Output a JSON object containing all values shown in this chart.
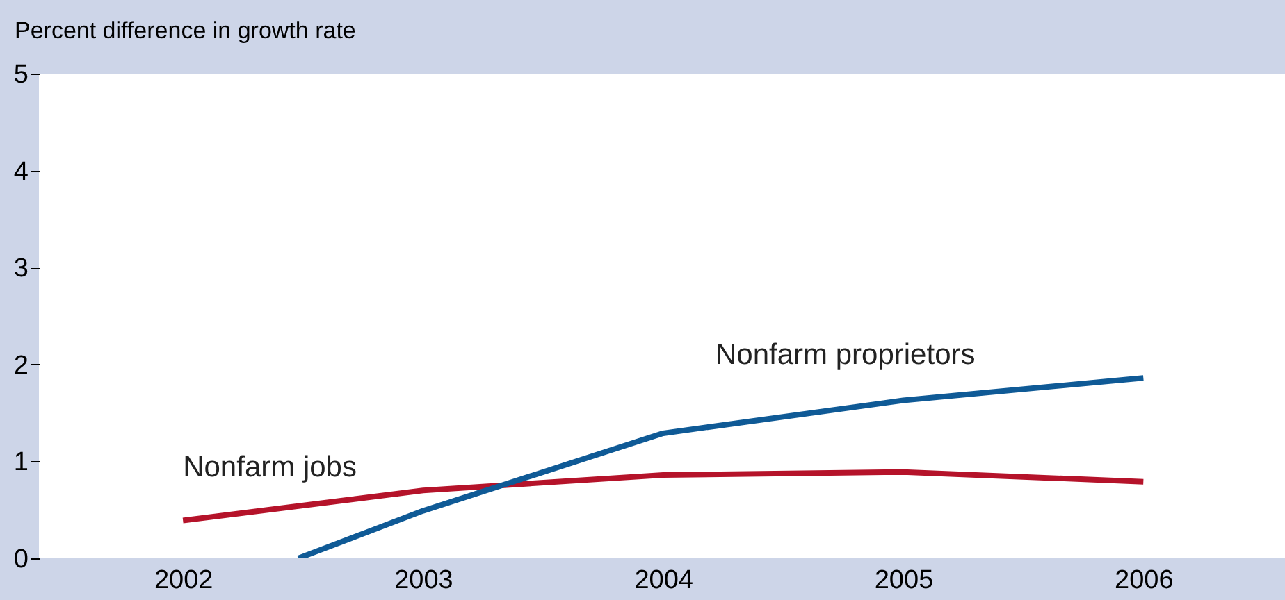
{
  "chart_data": {
    "type": "line",
    "ylabel": "Percent difference in growth rate",
    "xlim": [
      2001.4,
      2006.59
    ],
    "xticks": [
      2002,
      2003,
      2004,
      2005,
      2006
    ],
    "ylim": [
      0,
      5
    ],
    "yticks": [
      0,
      1,
      2,
      3,
      4,
      5
    ],
    "grid": false,
    "legend": false,
    "marker": "none",
    "line_style": "solid",
    "series": [
      {
        "name": "Nonfarm jobs",
        "color": "#b5132a",
        "x": [
          2002,
          2003,
          2004,
          2005,
          2006
        ],
        "values": [
          0.39,
          0.7,
          0.86,
          0.89,
          0.79
        ]
      },
      {
        "name": "Nonfarm proprietors",
        "color": "#0f5a96",
        "x": [
          2002.48,
          2003,
          2004,
          2005,
          2006
        ],
        "values": [
          0,
          0.49,
          1.29,
          1.63,
          1.86
        ]
      }
    ]
  }
}
